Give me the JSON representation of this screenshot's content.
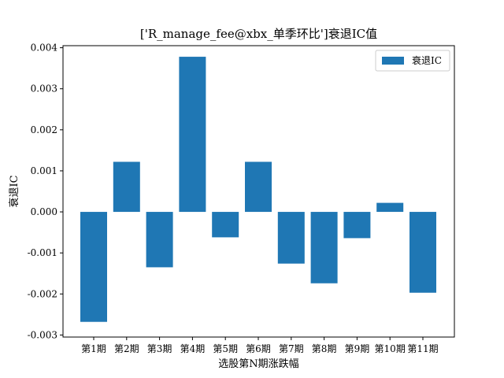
{
  "chart_data": {
    "type": "bar",
    "title": "['R_manage_fee@xbx_单季环比']衰退IC值",
    "xlabel": "选股第N期涨跌幅",
    "ylabel": "衰退IC",
    "categories": [
      "第1期",
      "第2期",
      "第3期",
      "第4期",
      "第5期",
      "第6期",
      "第7期",
      "第8期",
      "第9期",
      "第10期",
      "第11期"
    ],
    "series": [
      {
        "name": "衰退IC",
        "color": "#1f77b4",
        "values": [
          -0.00268,
          0.00122,
          -0.00135,
          0.00378,
          -0.00062,
          0.00122,
          -0.00126,
          -0.00174,
          -0.00064,
          0.00022,
          -0.00197
        ]
      }
    ],
    "ylim": [
      -0.00305,
      0.00405
    ],
    "yticks": [
      {
        "value": -0.003,
        "label": "-0.003"
      },
      {
        "value": -0.002,
        "label": "-0.002"
      },
      {
        "value": -0.001,
        "label": "-0.001"
      },
      {
        "value": 0.0,
        "label": "0.000"
      },
      {
        "value": 0.001,
        "label": "0.001"
      },
      {
        "value": 0.002,
        "label": "0.002"
      },
      {
        "value": 0.003,
        "label": "0.003"
      },
      {
        "value": 0.004,
        "label": "0.004"
      }
    ],
    "grid": false,
    "legend_position": "top-right"
  }
}
